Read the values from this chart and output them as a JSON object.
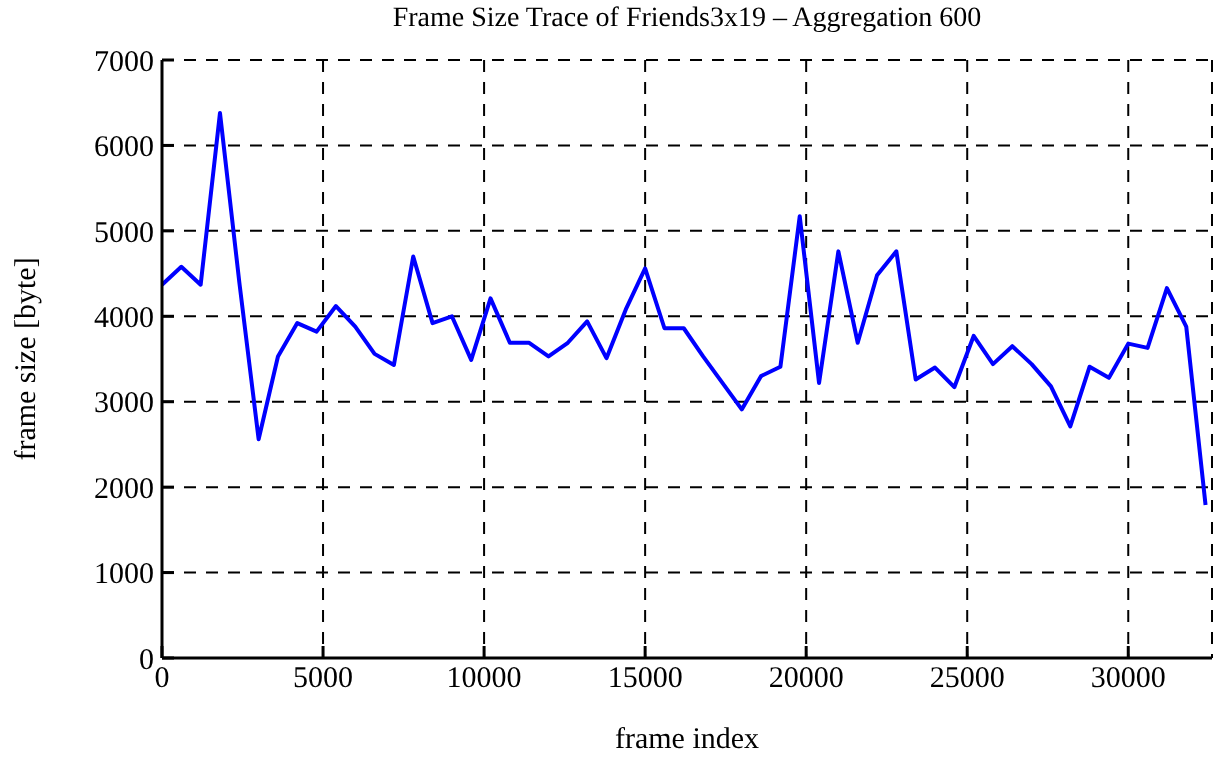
{
  "chart_data": {
    "type": "line",
    "title": "Frame Size Trace of Friends3x19 – Aggregation 600",
    "xlabel": "frame index",
    "ylabel": "frame size [byte]",
    "x": [
      0,
      600,
      1200,
      1800,
      2400,
      3000,
      3600,
      4200,
      4800,
      5400,
      6000,
      6600,
      7200,
      7800,
      8400,
      9000,
      9600,
      10200,
      10800,
      11400,
      12000,
      12600,
      13200,
      13800,
      14400,
      15000,
      15600,
      16200,
      16800,
      17400,
      18000,
      18600,
      19200,
      19800,
      20400,
      21000,
      21600,
      22200,
      22800,
      23400,
      24000,
      24600,
      25200,
      25800,
      26400,
      27000,
      27600,
      28200,
      28800,
      29400,
      30000,
      30600,
      31200,
      31800,
      32400
    ],
    "series": [
      {
        "color": "#0000ff",
        "values": [
          4370,
          4580,
          4370,
          6380,
          4400,
          2560,
          3530,
          3920,
          3820,
          4120,
          3880,
          3560,
          3430,
          4700,
          3920,
          4000,
          3490,
          4210,
          3690,
          3690,
          3530,
          3690,
          3940,
          3510,
          4080,
          4560,
          3860,
          3860,
          3530,
          3220,
          2910,
          3300,
          3410,
          5170,
          3220,
          4760,
          3690,
          4480,
          4760,
          3260,
          3400,
          3170,
          3770,
          3440,
          3650,
          3440,
          3180,
          2710,
          3410,
          3280,
          3680,
          3630,
          4330,
          3880,
          1790
        ]
      }
    ],
    "xlim": [
      0,
      32600
    ],
    "xticks": [
      0,
      5000,
      10000,
      15000,
      20000,
      25000,
      30000
    ],
    "ylim": [
      0,
      7000
    ],
    "yticks": [
      0,
      1000,
      2000,
      3000,
      4000,
      5000,
      6000,
      7000
    ],
    "grid": true,
    "legend": false,
    "marker": "none",
    "line_style": "solid"
  }
}
